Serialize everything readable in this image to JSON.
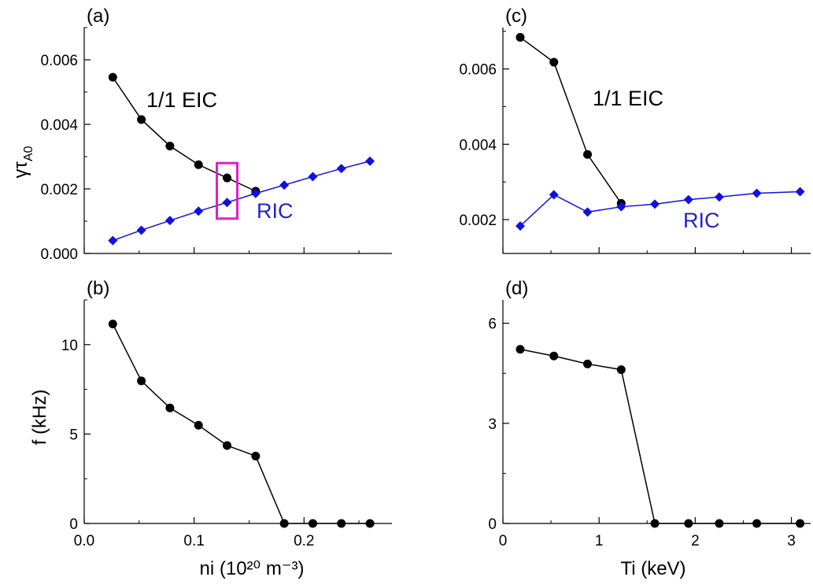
{
  "chart_data": [
    {
      "id": "a",
      "type": "line",
      "panel_label": "(a)",
      "xlabel": "",
      "ylabel": "γτ_A0",
      "ylabel_main": "γτ",
      "ylabel_sub": "A0",
      "xlim": [
        0.0,
        0.28
      ],
      "ylim": [
        0.0,
        0.007
      ],
      "x_ticks": [
        0.0,
        0.1,
        0.2
      ],
      "y_ticks": [
        0.0,
        0.002,
        0.004,
        0.006
      ],
      "y_tick_labels": [
        "0.000",
        "0.002",
        "0.004",
        "0.006"
      ],
      "grid": false,
      "series": [
        {
          "name": "1/1 EIC",
          "marker": "circle",
          "color": "#000000",
          "x": [
            0.026,
            0.052,
            0.078,
            0.104,
            0.13,
            0.156
          ],
          "y": [
            0.00546,
            0.00415,
            0.00333,
            0.00275,
            0.00234,
            0.00193
          ]
        },
        {
          "name": "RIC",
          "marker": "diamond",
          "color": "#1010e0",
          "x": [
            0.026,
            0.052,
            0.078,
            0.104,
            0.13,
            0.156,
            0.182,
            0.208,
            0.234,
            0.26
          ],
          "y": [
            0.0004,
            0.00072,
            0.00102,
            0.00131,
            0.00158,
            0.00186,
            0.00212,
            0.00238,
            0.00263,
            0.00286
          ]
        }
      ],
      "annotations": [
        {
          "text": "1/1 EIC",
          "color": "#000000"
        },
        {
          "text": "RIC",
          "color": "#2222cc"
        }
      ],
      "highlight_box": {
        "x_center": 0.13,
        "y_range": [
          0.00108,
          0.0028
        ],
        "color": "#e020c0"
      }
    },
    {
      "id": "b",
      "type": "line",
      "panel_label": "(b)",
      "xlabel": "ni (10²⁰ m⁻³)",
      "ylabel": "f (kHz)",
      "xlim": [
        0.0,
        0.28
      ],
      "ylim": [
        0,
        12.5
      ],
      "x_ticks": [
        0.0,
        0.1,
        0.2
      ],
      "x_tick_labels": [
        "0.0",
        "0.1",
        "0.2"
      ],
      "y_ticks": [
        0,
        5,
        10
      ],
      "y_tick_labels": [
        "0",
        "5",
        "10"
      ],
      "grid": false,
      "series": [
        {
          "name": "",
          "marker": "circle",
          "color": "#000000",
          "x": [
            0.026,
            0.052,
            0.078,
            0.104,
            0.13,
            0.156,
            0.182,
            0.208,
            0.234,
            0.26
          ],
          "y": [
            11.15,
            7.97,
            6.46,
            5.49,
            4.36,
            3.77,
            0.0,
            0.0,
            0.0,
            0.0
          ]
        }
      ]
    },
    {
      "id": "c",
      "type": "line",
      "panel_label": "(c)",
      "xlabel": "",
      "ylabel": "",
      "xlim": [
        0,
        3.2
      ],
      "ylim": [
        0.0011,
        0.0071
      ],
      "x_ticks": [
        0,
        1,
        2,
        3
      ],
      "y_ticks": [
        0.002,
        0.004,
        0.006
      ],
      "y_tick_labels": [
        "0.002",
        "0.004",
        "0.006"
      ],
      "grid": false,
      "series": [
        {
          "name": "1/1 EIC",
          "marker": "circle",
          "color": "#000000",
          "x": [
            0.18,
            0.53,
            0.88,
            1.23
          ],
          "y": [
            0.00684,
            0.00618,
            0.00373,
            0.00243
          ]
        },
        {
          "name": "RIC",
          "marker": "diamond",
          "color": "#1010e0",
          "x": [
            0.18,
            0.53,
            0.88,
            1.23,
            1.58,
            1.93,
            2.25,
            2.64,
            3.09
          ],
          "y": [
            0.00183,
            0.00266,
            0.0022,
            0.00234,
            0.00241,
            0.00253,
            0.0026,
            0.0027,
            0.00274
          ]
        }
      ],
      "annotations": [
        {
          "text": "1/1 EIC",
          "color": "#000000"
        },
        {
          "text": "RIC",
          "color": "#2222cc"
        }
      ]
    },
    {
      "id": "d",
      "type": "line",
      "panel_label": "(d)",
      "xlabel": "Ti (keV)",
      "ylabel": "",
      "xlim": [
        0,
        3.2
      ],
      "ylim": [
        0,
        6.7
      ],
      "x_ticks": [
        0,
        1,
        2,
        3
      ],
      "x_tick_labels": [
        "0",
        "1",
        "2",
        "3"
      ],
      "y_ticks": [
        0,
        3,
        6
      ],
      "y_tick_labels": [
        "0",
        "3",
        "6"
      ],
      "grid": false,
      "series": [
        {
          "name": "",
          "marker": "circle",
          "color": "#000000",
          "x": [
            0.18,
            0.53,
            0.88,
            1.23,
            1.58,
            1.93,
            2.25,
            2.64,
            3.09
          ],
          "y": [
            5.22,
            5.02,
            4.78,
            4.61,
            0.0,
            0.0,
            0.0,
            0.0,
            0.0
          ]
        }
      ]
    }
  ]
}
